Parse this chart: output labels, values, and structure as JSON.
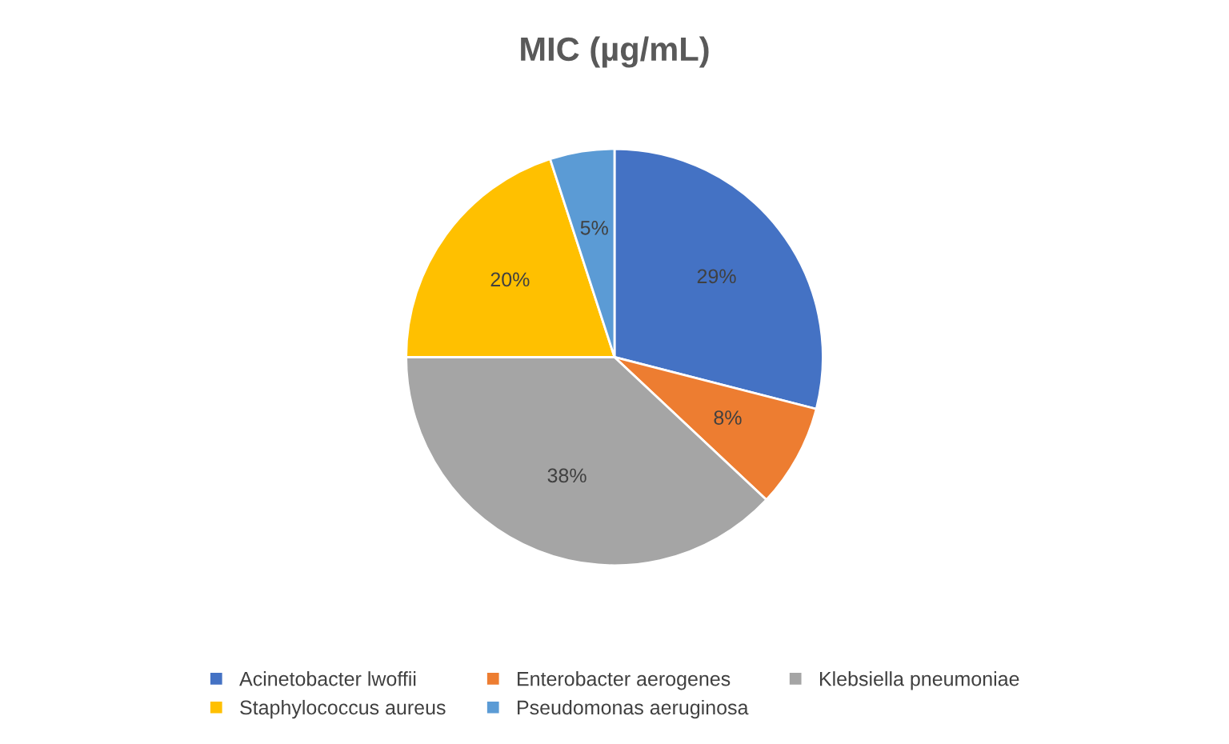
{
  "chart_data": {
    "type": "pie",
    "title": "MIC (µg/mL)",
    "categories": [
      "Acinetobacter lwoffii",
      "Enterobacter aerogenes",
      "Klebsiella pneumoniae",
      "Staphylococcus aureus",
      "Pseudomonas aeruginosa"
    ],
    "values": [
      29,
      8,
      38,
      20,
      5
    ],
    "value_labels": [
      "29%",
      "8%",
      "38%",
      "20%",
      "5%"
    ],
    "colors": [
      "#4472c4",
      "#ed7d31",
      "#a5a5a5",
      "#ffc000",
      "#5b9bd5"
    ],
    "legend": "bottom"
  }
}
